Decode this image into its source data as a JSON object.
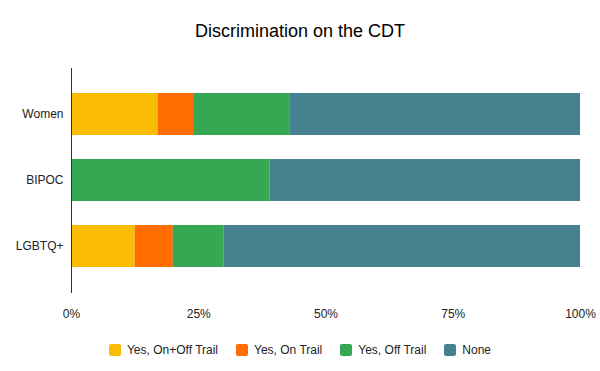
{
  "chart_data": {
    "type": "bar",
    "title": "Discrimination on the CDT",
    "orientation": "horizontal",
    "stacked": true,
    "grid": false,
    "legend": "bottom",
    "categories": [
      "Women",
      "BIPOC",
      "LGBTQ+"
    ],
    "series": [
      {
        "name": "Yes, On+Off Trail",
        "color": "#fbbc04",
        "values": [
          17,
          0,
          12.5
        ]
      },
      {
        "name": "Yes, On Trail",
        "color": "#ff6d01",
        "values": [
          7,
          0,
          7.5
        ]
      },
      {
        "name": "Yes, Off Trail",
        "color": "#34a853",
        "values": [
          19,
          39,
          10
        ]
      },
      {
        "name": "None",
        "color": "#45818e",
        "values": [
          57,
          61,
          70
        ]
      }
    ],
    "xlim": [
      0,
      100
    ],
    "xticks": [
      {
        "value": 0,
        "label": "0%"
      },
      {
        "value": 25,
        "label": "25%"
      },
      {
        "value": 50,
        "label": "50%"
      },
      {
        "value": 75,
        "label": "75%"
      },
      {
        "value": 100,
        "label": "100%"
      }
    ]
  }
}
